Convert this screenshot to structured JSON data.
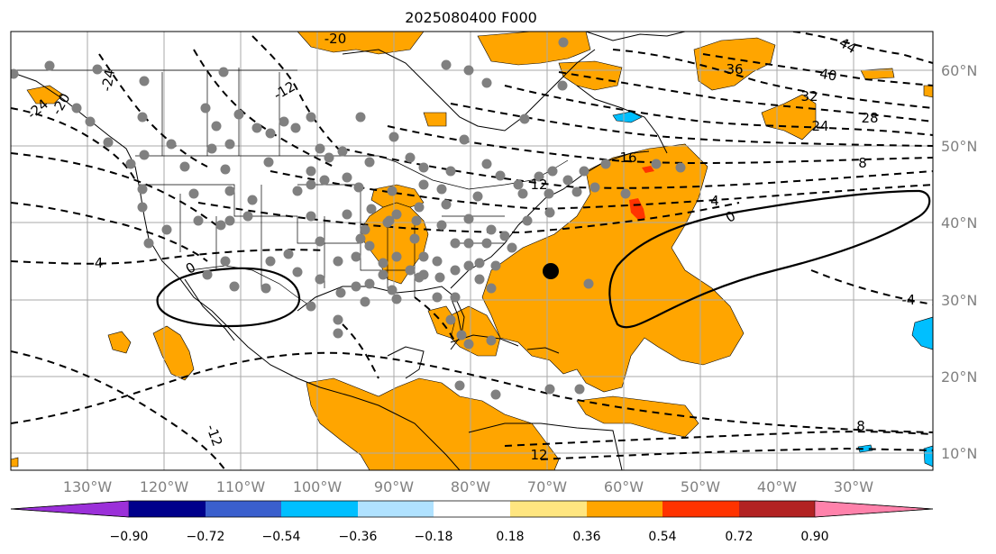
{
  "title": "2025080400 F000",
  "map": {
    "lon_range": [
      -140,
      -20
    ],
    "lat_range": [
      8,
      65
    ],
    "lon_labels": [
      "130°W",
      "120°W",
      "110°W",
      "100°W",
      "90°W",
      "80°W",
      "70°W",
      "60°W",
      "50°W",
      "40°W",
      "30°W"
    ],
    "lat_labels": [
      "60°N",
      "50°N",
      "40°N",
      "30°N",
      "20°N",
      "10°N"
    ],
    "contour_labels": [
      "-20",
      "-20",
      "-24",
      "-24",
      "-12",
      "44",
      "40",
      "36",
      "32",
      "28",
      "24",
      "16",
      "12",
      "8",
      "4",
      "0",
      "-4",
      "-4",
      "0",
      "8",
      "-12",
      "12"
    ],
    "colors": {
      "positive_shade": "#ffa500",
      "strong_positive": "#ff3300",
      "negative_shade": "#00bfff",
      "station_dot": "#808080",
      "marker": "#000000"
    }
  },
  "colorbar": {
    "tick_labels": [
      "−0.90",
      "−0.72",
      "−0.54",
      "−0.36",
      "−0.18",
      "0.18",
      "0.36",
      "0.54",
      "0.72",
      "0.90"
    ],
    "colors": [
      "#9b30d9",
      "#00008b",
      "#3a5fcd",
      "#00bfff",
      "#b0e2ff",
      "#ffffff",
      "#ffe680",
      "#ffa500",
      "#ff3300",
      "#b22222",
      "#ff82ab"
    ]
  }
}
